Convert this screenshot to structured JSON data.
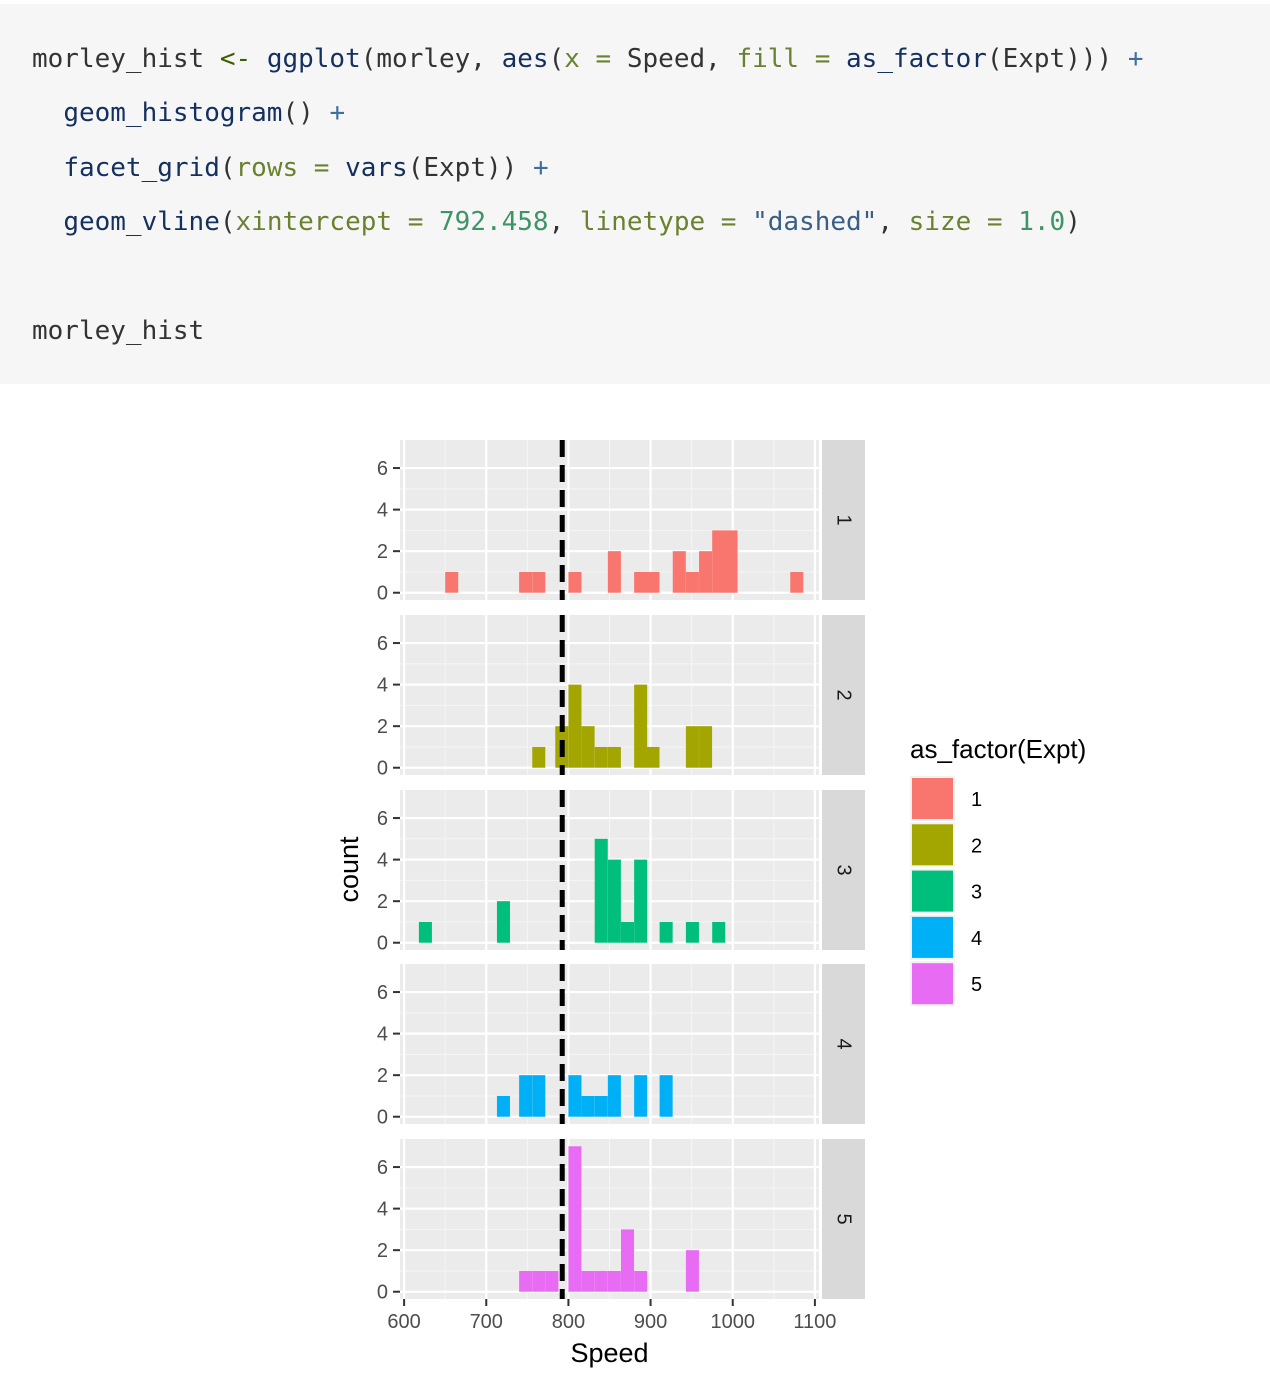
{
  "code": {
    "lines": [
      [
        {
          "t": "morley_hist ",
          "c": "c-txt"
        },
        {
          "t": "<-",
          "c": "c-op"
        },
        {
          "t": " ",
          "c": "c-txt"
        },
        {
          "t": "ggplot",
          "c": "c-fn"
        },
        {
          "t": "(morley, ",
          "c": "c-txt"
        },
        {
          "t": "aes",
          "c": "c-fn"
        },
        {
          "t": "(",
          "c": "c-txt"
        },
        {
          "t": "x = ",
          "c": "c-arg"
        },
        {
          "t": "Speed, ",
          "c": "c-txt"
        },
        {
          "t": "fill = ",
          "c": "c-arg"
        },
        {
          "t": "as_factor",
          "c": "c-fn"
        },
        {
          "t": "(Expt))) ",
          "c": "c-txt"
        },
        {
          "t": "+",
          "c": "c-plus"
        }
      ],
      [
        {
          "t": "  ",
          "c": "c-txt"
        },
        {
          "t": "geom_histogram",
          "c": "c-fn"
        },
        {
          "t": "() ",
          "c": "c-txt"
        },
        {
          "t": "+",
          "c": "c-plus"
        }
      ],
      [
        {
          "t": "  ",
          "c": "c-txt"
        },
        {
          "t": "facet_grid",
          "c": "c-fn"
        },
        {
          "t": "(",
          "c": "c-txt"
        },
        {
          "t": "rows = ",
          "c": "c-arg"
        },
        {
          "t": "vars",
          "c": "c-fn"
        },
        {
          "t": "(Expt)) ",
          "c": "c-txt"
        },
        {
          "t": "+",
          "c": "c-plus"
        }
      ],
      [
        {
          "t": "  ",
          "c": "c-txt"
        },
        {
          "t": "geom_vline",
          "c": "c-fn"
        },
        {
          "t": "(",
          "c": "c-txt"
        },
        {
          "t": "xintercept = ",
          "c": "c-arg"
        },
        {
          "t": "792.458",
          "c": "c-num"
        },
        {
          "t": ", ",
          "c": "c-txt"
        },
        {
          "t": "linetype = ",
          "c": "c-arg"
        },
        {
          "t": "\"dashed\"",
          "c": "c-str"
        },
        {
          "t": ", ",
          "c": "c-txt"
        },
        {
          "t": "size = ",
          "c": "c-arg"
        },
        {
          "t": "1.0",
          "c": "c-num"
        },
        {
          "t": ")",
          "c": "c-txt"
        }
      ],
      [],
      [
        {
          "t": "morley_hist",
          "c": "c-txt"
        }
      ]
    ]
  },
  "chart_data": {
    "type": "bar",
    "subtype": "faceted histogram",
    "xlabel": "Speed",
    "ylabel": "count",
    "xlim": [
      595,
      1105
    ],
    "ylim": [
      -0.35,
      7.35
    ],
    "x_ticks": [
      600,
      700,
      800,
      900,
      1000,
      1100
    ],
    "y_ticks": [
      0,
      2,
      4,
      6
    ],
    "bin_width": 15.86,
    "vline": {
      "x": 792.458,
      "linetype": "dashed"
    },
    "panel_background": "#ebebeb",
    "strip_background": "#d9d9d9",
    "legend": {
      "title": "as_factor(Expt)",
      "position": "right",
      "entries": [
        {
          "label": "1",
          "color": "#f8766d"
        },
        {
          "label": "2",
          "color": "#a3a500"
        },
        {
          "label": "3",
          "color": "#00bf7d"
        },
        {
          "label": "4",
          "color": "#00b0f6"
        },
        {
          "label": "5",
          "color": "#e76bf3"
        }
      ]
    },
    "facets": [
      {
        "strip": "1",
        "color": "#f8766d",
        "bins": [
          {
            "x0": 650,
            "count": 1
          },
          {
            "x0": 740,
            "count": 1
          },
          {
            "x0": 756,
            "count": 1
          },
          {
            "x0": 800,
            "count": 1
          },
          {
            "x0": 848,
            "count": 2
          },
          {
            "x0": 880,
            "count": 1
          },
          {
            "x0": 895,
            "count": 1
          },
          {
            "x0": 927,
            "count": 2
          },
          {
            "x0": 943,
            "count": 1
          },
          {
            "x0": 959,
            "count": 2
          },
          {
            "x0": 975,
            "count": 3
          },
          {
            "x0": 990,
            "count": 3
          },
          {
            "x0": 1070,
            "count": 1
          }
        ]
      },
      {
        "strip": "2",
        "color": "#a3a500",
        "bins": [
          {
            "x0": 756,
            "count": 1
          },
          {
            "x0": 784,
            "count": 2
          },
          {
            "x0": 800,
            "count": 4
          },
          {
            "x0": 816,
            "count": 2
          },
          {
            "x0": 832,
            "count": 1
          },
          {
            "x0": 848,
            "count": 1
          },
          {
            "x0": 880,
            "count": 4
          },
          {
            "x0": 895,
            "count": 1
          },
          {
            "x0": 943,
            "count": 2
          },
          {
            "x0": 959,
            "count": 2
          }
        ]
      },
      {
        "strip": "3",
        "color": "#00bf7d",
        "bins": [
          {
            "x0": 618,
            "count": 1
          },
          {
            "x0": 713,
            "count": 2
          },
          {
            "x0": 832,
            "count": 5
          },
          {
            "x0": 848,
            "count": 4
          },
          {
            "x0": 864,
            "count": 1
          },
          {
            "x0": 880,
            "count": 4
          },
          {
            "x0": 911,
            "count": 1
          },
          {
            "x0": 943,
            "count": 1
          },
          {
            "x0": 975,
            "count": 1
          }
        ]
      },
      {
        "strip": "4",
        "color": "#00b0f6",
        "bins": [
          {
            "x0": 713,
            "count": 1
          },
          {
            "x0": 740,
            "count": 2
          },
          {
            "x0": 756,
            "count": 2
          },
          {
            "x0": 800,
            "count": 2
          },
          {
            "x0": 816,
            "count": 1
          },
          {
            "x0": 832,
            "count": 1
          },
          {
            "x0": 848,
            "count": 2
          },
          {
            "x0": 880,
            "count": 2
          },
          {
            "x0": 911,
            "count": 2
          }
        ]
      },
      {
        "strip": "5",
        "color": "#e76bf3",
        "bins": [
          {
            "x0": 740,
            "count": 1
          },
          {
            "x0": 756,
            "count": 1
          },
          {
            "x0": 772,
            "count": 1
          },
          {
            "x0": 800,
            "count": 7
          },
          {
            "x0": 816,
            "count": 1
          },
          {
            "x0": 832,
            "count": 1
          },
          {
            "x0": 848,
            "count": 1
          },
          {
            "x0": 864,
            "count": 3
          },
          {
            "x0": 880,
            "count": 1
          },
          {
            "x0": 943,
            "count": 2
          }
        ]
      }
    ]
  }
}
